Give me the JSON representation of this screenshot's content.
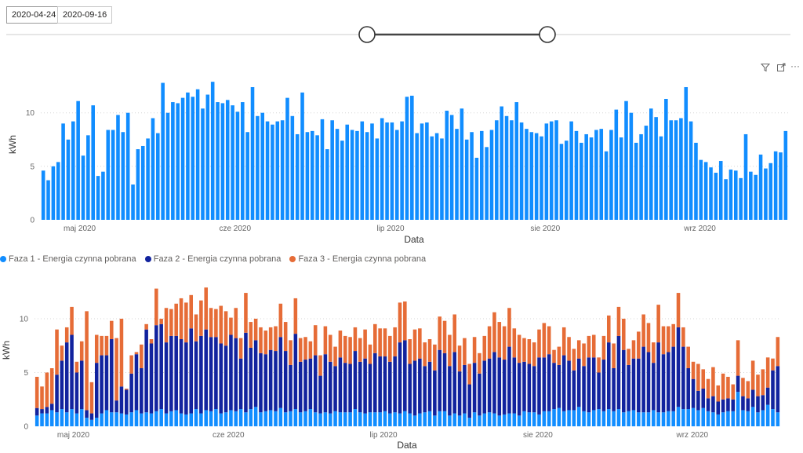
{
  "slicer": {
    "start_date": "2020-04-24",
    "end_date": "2020-09-16",
    "range_fraction": [
      0.46,
      0.69
    ]
  },
  "toolbar": {
    "filter_icon": "filter-icon",
    "focus_icon": "focus-mode-icon",
    "more_icon": "more-options-icon",
    "more_label": "···"
  },
  "legend": {
    "items": [
      {
        "label": "Faza 1 - Energia czynna pobrana",
        "color": "#118dff"
      },
      {
        "label": "Faza 2 - Energia czynna pobrana",
        "color": "#12239e"
      },
      {
        "label": "Faza 3 - Energia czynna pobrana",
        "color": "#e66c37"
      }
    ]
  },
  "chart_data": [
    {
      "type": "bar",
      "xlabel": "Data",
      "ylabel": "kWh",
      "x_tick_labels": [
        "maj 2020",
        "cze 2020",
        "lip 2020",
        "sie 2020",
        "wrz 2020"
      ],
      "y_ticks": [
        0,
        5,
        10
      ],
      "ylim": [
        0,
        13.5
      ],
      "grid": true,
      "color": "#118dff",
      "values": [
        4.6,
        3.7,
        5.0,
        5.4,
        9.0,
        7.5,
        9.2,
        11.1,
        6.0,
        7.9,
        10.7,
        4.1,
        4.5,
        8.4,
        8.4,
        9.8,
        8.2,
        10.0,
        3.3,
        6.6,
        6.9,
        7.6,
        9.5,
        8.1,
        12.8,
        10.0,
        11.0,
        10.9,
        11.4,
        11.9,
        11.5,
        12.2,
        10.4,
        11.7,
        12.9,
        11.0,
        10.9,
        11.2,
        10.7,
        10.1,
        11.0,
        8.2,
        12.4,
        9.7,
        10.0,
        9.2,
        8.9,
        9.2,
        9.3,
        11.4,
        9.7,
        8.0,
        11.9,
        8.2,
        8.3,
        7.9,
        9.4,
        6.6,
        9.3,
        8.5,
        7.4,
        8.9,
        8.4,
        8.3,
        9.2,
        8.2,
        9.0,
        7.6,
        9.5,
        9.1,
        9.1,
        8.4,
        9.2,
        11.5,
        11.6,
        8.1,
        9.0,
        9.1,
        7.8,
        8.1,
        7.6,
        10.2,
        9.8,
        8.5,
        10.4,
        7.5,
        8.2,
        5.8,
        8.3,
        6.8,
        8.4,
        9.3,
        10.6,
        9.7,
        9.3,
        11.0,
        9.1,
        8.5,
        8.2,
        8.1,
        7.8,
        9.0,
        9.2,
        9.3,
        7.1,
        7.4,
        9.2,
        8.3,
        7.2,
        8.0,
        7.7,
        8.4,
        8.5,
        6.4,
        8.4,
        10.3,
        7.7,
        11.1,
        10.0,
        7.2,
        8.0,
        8.8,
        10.4,
        9.6,
        7.8,
        11.3,
        9.3,
        9.3,
        9.5,
        12.4,
        9.2,
        7.2,
        5.6,
        5.4,
        4.9,
        4.4,
        5.5,
        3.8,
        4.7,
        4.6,
        3.9,
        8.0,
        4.5,
        4.2,
        6.1,
        4.8,
        5.3,
        6.4,
        6.3,
        8.3
      ]
    },
    {
      "type": "bar",
      "stacked": true,
      "xlabel": "Data",
      "ylabel": "kWh",
      "x_tick_labels": [
        "maj 2020",
        "cze 2020",
        "lip 2020",
        "sie 2020",
        "wrz 2020"
      ],
      "y_ticks": [
        0,
        5,
        10
      ],
      "ylim": [
        0,
        13.5
      ],
      "grid": true,
      "series": [
        {
          "name": "Faza 1 - Energia czynna pobrana",
          "color": "#118dff",
          "values": [
            1.0,
            1.2,
            1.2,
            1.5,
            1.3,
            1.6,
            1.3,
            1.6,
            1.2,
            1.6,
            0.8,
            0.6,
            0.8,
            1.2,
            1.5,
            1.3,
            1.3,
            1.2,
            1.1,
            1.3,
            1.5,
            1.2,
            1.3,
            1.2,
            1.4,
            1.6,
            1.2,
            1.4,
            1.5,
            1.2,
            1.1,
            1.2,
            1.6,
            1.2,
            1.5,
            1.4,
            1.6,
            1.2,
            1.3,
            1.5,
            1.4,
            1.6,
            1.3,
            1.6,
            1.8,
            1.3,
            1.4,
            1.5,
            1.4,
            1.7,
            1.3,
            1.4,
            1.6,
            1.3,
            1.4,
            1.6,
            1.3,
            1.2,
            1.3,
            1.2,
            1.4,
            1.3,
            1.3,
            1.3,
            1.6,
            1.3,
            1.2,
            1.3,
            1.3,
            1.3,
            1.4,
            1.2,
            1.3,
            1.2,
            1.4,
            1.2,
            1.0,
            1.2,
            1.3,
            1.4,
            1.0,
            1.4,
            1.4,
            1.0,
            1.2,
            1.0,
            1.2,
            0.8,
            1.3,
            1.0,
            1.2,
            1.3,
            1.2,
            1.0,
            1.1,
            1.2,
            1.2,
            1.0,
            1.4,
            1.3,
            1.3,
            1.1,
            1.4,
            1.4,
            1.6,
            1.7,
            1.4,
            1.5,
            1.5,
            1.8,
            1.4,
            1.3,
            1.5,
            1.6,
            1.4,
            1.6,
            1.4,
            1.6,
            1.3,
            1.4,
            1.5,
            1.3,
            1.3,
            1.3,
            1.5,
            1.3,
            1.3,
            1.4,
            1.4,
            1.8,
            1.6,
            1.6,
            1.7,
            1.5,
            1.7,
            1.4,
            1.3,
            1.1,
            1.3,
            1.4,
            1.4,
            3.2,
            1.5,
            1.4,
            1.8,
            1.3,
            1.5,
            2.0,
            1.6,
            1.3
          ]
        },
        {
          "name": "Faza 2 - Energia czynna pobrana",
          "color": "#12239e",
          "values": [
            0.7,
            0.4,
            0.6,
            0.6,
            3.5,
            4.5,
            6.5,
            6.9,
            3.8,
            4.5,
            0.7,
            0.6,
            5.1,
            5.4,
            5.1,
            6.8,
            1.1,
            2.5,
            2.3,
            3.6,
            5.2,
            4.2,
            7.7,
            6.5,
            8.0,
            7.9,
            6.6,
            7.0,
            6.9,
            6.9,
            6.7,
            7.9,
            6.3,
            7.2,
            7.5,
            6.9,
            6.7,
            6.5,
            6.2,
            7.0,
            6.8,
            4.7,
            7.4,
            5.7,
            6.2,
            5.5,
            5.3,
            5.6,
            5.6,
            6.6,
            5.7,
            4.3,
            7.0,
            4.7,
            4.8,
            4.7,
            5.3,
            3.5,
            5.4,
            4.8,
            4.2,
            5.1,
            4.6,
            4.5,
            5.4,
            4.7,
            5.1,
            4.5,
            5.5,
            5.2,
            5.1,
            4.8,
            5.2,
            6.6,
            6.6,
            4.6,
            5.1,
            5.1,
            4.3,
            4.6,
            4.2,
            5.7,
            5.4,
            4.6,
            5.7,
            4.1,
            4.5,
            3.1,
            4.6,
            3.9,
            4.9,
            5.0,
            5.7,
            5.4,
            5.1,
            6.2,
            5.2,
            4.9,
            4.6,
            4.5,
            4.3,
            5.3,
            5.0,
            5.3,
            4.3,
            4.0,
            5.2,
            4.6,
            3.7,
            4.5,
            4.2,
            5.1,
            4.9,
            3.4,
            4.8,
            6.2,
            4.0,
            6.8,
            5.8,
            4.3,
            4.8,
            5.0,
            6.1,
            5.6,
            4.4,
            6.5,
            5.4,
            5.5,
            6.0,
            7.4,
            5.8,
            3.8,
            2.7,
            1.8,
            1.8,
            1.2,
            1.5,
            1.2,
            1.2,
            1.2,
            1.1,
            1.5,
            1.3,
            1.2,
            1.6,
            1.5,
            1.4,
            1.6,
            3.6,
            4.3
          ]
        },
        {
          "name": "Faza 3 - Energia czynna pobrana",
          "color": "#e66c37",
          "values": [
            2.9,
            2.1,
            3.2,
            3.3,
            4.2,
            1.4,
            1.4,
            2.6,
            1.0,
            1.8,
            9.2,
            2.9,
            2.6,
            1.8,
            1.8,
            1.7,
            5.8,
            6.3,
            0.1,
            1.7,
            0.2,
            2.2,
            0.5,
            0.4,
            3.4,
            0.5,
            3.2,
            2.5,
            3.0,
            3.8,
            3.7,
            3.1,
            2.5,
            3.3,
            3.9,
            2.7,
            2.6,
            3.5,
            3.2,
            1.6,
            2.8,
            1.9,
            3.7,
            2.4,
            2.0,
            2.4,
            2.2,
            2.1,
            2.3,
            3.1,
            2.7,
            2.3,
            3.3,
            2.2,
            2.1,
            1.6,
            2.8,
            1.9,
            2.6,
            2.5,
            1.8,
            2.5,
            2.5,
            2.5,
            2.2,
            2.2,
            2.7,
            1.8,
            2.7,
            2.6,
            2.6,
            2.4,
            2.7,
            3.7,
            3.6,
            2.3,
            2.9,
            2.8,
            2.2,
            2.1,
            2.4,
            3.1,
            3.0,
            2.9,
            3.5,
            2.4,
            2.5,
            1.9,
            2.4,
            1.9,
            2.3,
            3.0,
            3.7,
            3.3,
            3.1,
            3.6,
            2.7,
            2.6,
            2.2,
            2.3,
            2.2,
            2.6,
            3.2,
            2.6,
            1.2,
            1.7,
            2.6,
            2.2,
            2.0,
            1.7,
            2.1,
            2.0,
            2.1,
            1.4,
            2.2,
            2.5,
            2.3,
            2.7,
            2.9,
            1.5,
            1.7,
            2.5,
            3.0,
            2.7,
            1.9,
            3.5,
            2.6,
            2.4,
            2.1,
            3.2,
            1.8,
            2.0,
            1.6,
            2.5,
            1.8,
            1.8,
            2.7,
            1.5,
            2.4,
            2.0,
            1.4,
            3.3,
            1.7,
            1.6,
            2.7,
            2.0,
            2.4,
            2.8,
            1.1,
            2.7
          ]
        }
      ]
    }
  ]
}
